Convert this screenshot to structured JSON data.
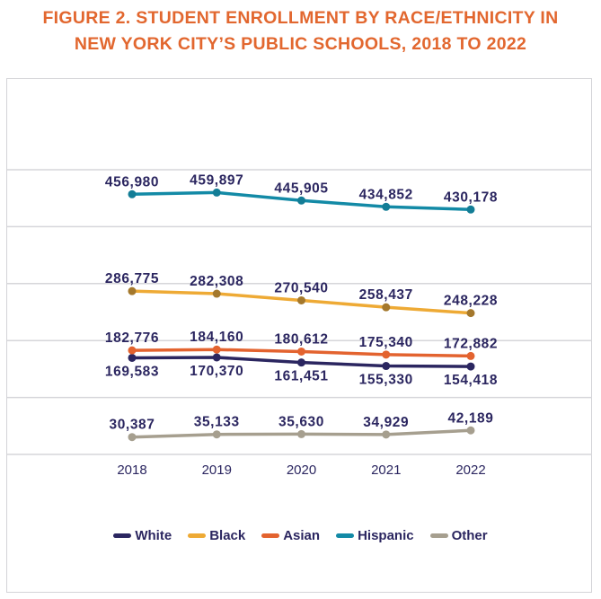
{
  "title_line1": "FIGURE 2. STUDENT ENROLLMENT BY RACE/ETHNICITY IN",
  "title_line2": "NEW YORK CITY’S PUBLIC SCHOOLS, 2018 TO 2022",
  "chart_data": {
    "type": "line",
    "title": "FIGURE 2. STUDENT ENROLLMENT BY RACE/ETHNICITY IN NEW YORK CITY’S PUBLIC SCHOOLS, 2018 TO 2022",
    "xlabel": "",
    "ylabel": "",
    "categories": [
      "2018",
      "2019",
      "2020",
      "2021",
      "2022"
    ],
    "ylim": [
      0,
      500000
    ],
    "grid": true,
    "legend_position": "bottom",
    "series": [
      {
        "name": "White",
        "color": "#2b2660",
        "marker": "#2b2660",
        "label_pos": "below",
        "values": [
          169583,
          170370,
          161451,
          155330,
          154418
        ],
        "labels": [
          "169,583",
          "170,370",
          "161,451",
          "155,330",
          "154,418"
        ]
      },
      {
        "name": "Black",
        "color": "#eeaa35",
        "marker": "#a4782c",
        "label_pos": "above",
        "values": [
          286775,
          282308,
          270540,
          258437,
          248228
        ],
        "labels": [
          "286,775",
          "282,308",
          "270,540",
          "258,437",
          "248,228"
        ]
      },
      {
        "name": "Asian",
        "color": "#e3632f",
        "marker": "#e3632f",
        "label_pos": "above",
        "values": [
          182776,
          184160,
          180612,
          175340,
          172882
        ],
        "labels": [
          "182,776",
          "184,160",
          "180,612",
          "175,340",
          "172,882"
        ]
      },
      {
        "name": "Hispanic",
        "color": "#138aa6",
        "marker": "#137d96",
        "label_pos": "above",
        "values": [
          456980,
          459897,
          445905,
          434852,
          430178
        ],
        "labels": [
          "456,980",
          "459,897",
          "445,905",
          "434,852",
          "430,178"
        ]
      },
      {
        "name": "Other",
        "color": "#a69f8f",
        "marker": "#a69f8f",
        "label_pos": "above",
        "values": [
          30387,
          35133,
          35630,
          34929,
          42189
        ],
        "labels": [
          "30,387",
          "35,133",
          "35,630",
          "34,929",
          "42,189"
        ]
      }
    ]
  }
}
